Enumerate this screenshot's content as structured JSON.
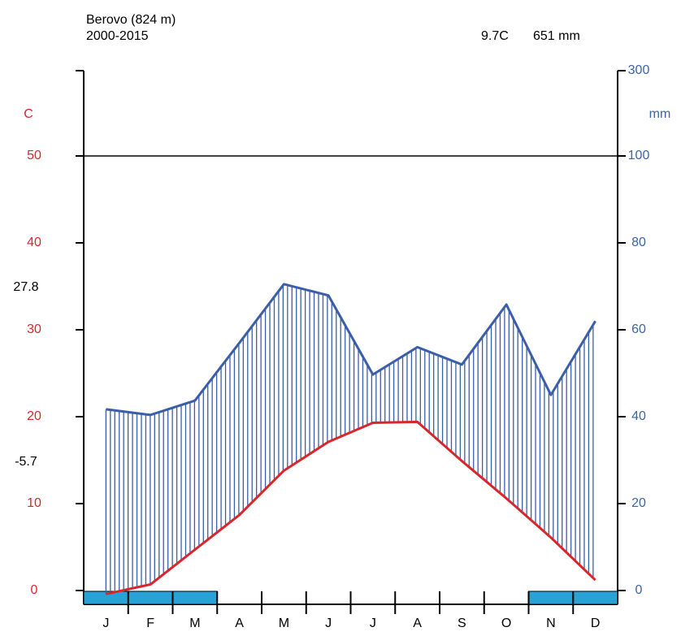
{
  "chart_data": {
    "type": "climate",
    "title": "Berovo (824 m)",
    "subtitle": "2000-2015",
    "mean_temperature": "9.7C",
    "annual_precipitation": "651 mm",
    "y_label": "C",
    "y2_label": "mm",
    "max_annotation": "27.8",
    "min_annotation": "-5.7",
    "categories": [
      "J",
      "F",
      "M",
      "A",
      "M",
      "J",
      "J",
      "A",
      "S",
      "O",
      "N",
      "D"
    ],
    "series": [
      {
        "name": "Temperature",
        "color": "#d9262b",
        "values": [
          -0.4,
          0.7,
          4.7,
          8.7,
          13.8,
          17.1,
          19.3,
          19.4,
          14.9,
          10.6,
          6.1,
          1.2
        ]
      },
      {
        "name": "Precipitation",
        "color": "#3a5fa8",
        "axis": "y2",
        "values": [
          41.7,
          40.4,
          43.7,
          57,
          70.5,
          67.9,
          49.7,
          56,
          52,
          65.8,
          45,
          62
        ]
      }
    ],
    "frost": [
      true,
      true,
      true,
      false,
      false,
      false,
      false,
      false,
      false,
      false,
      true,
      true
    ],
    "frost_color": "#29a3d6",
    "ylim": [
      0,
      50
    ],
    "yticks": [
      0,
      10,
      20,
      30,
      40,
      50
    ],
    "y_color": "#d9262b",
    "y2lim": [
      0,
      300
    ],
    "y2ticks": [
      0,
      20,
      40,
      60,
      80,
      100,
      300
    ],
    "y2_color": "#3c64a8"
  }
}
